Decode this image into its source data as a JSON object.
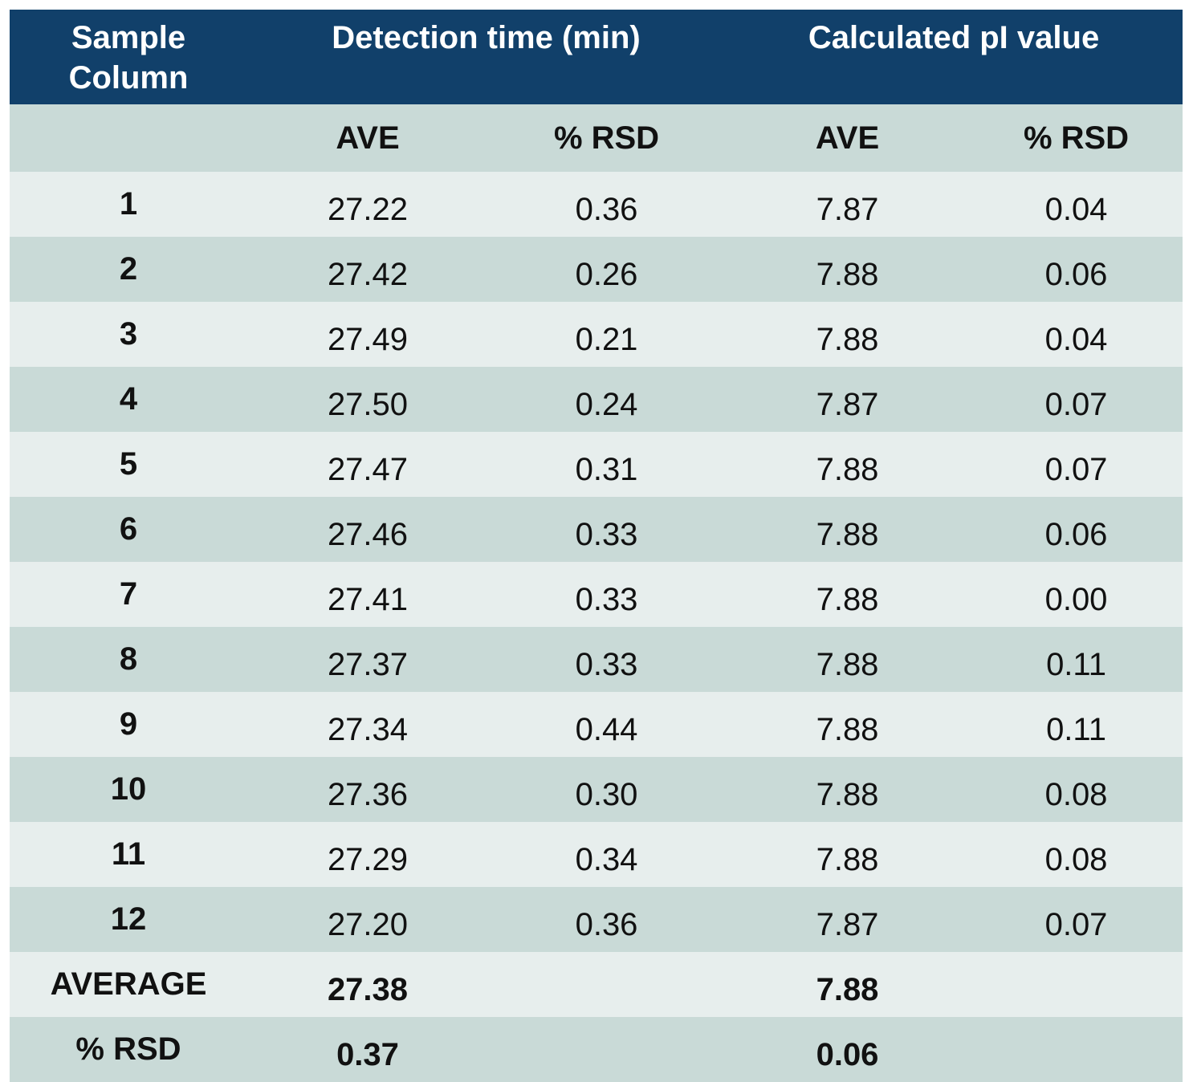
{
  "header": {
    "sample_column": [
      "Sample",
      "Column"
    ],
    "detection_time": "Detection time (min)",
    "calculated_pi": "Calculated pI value"
  },
  "subheader": {
    "blank": "",
    "dt_ave": "AVE",
    "dt_rsd": "% RSD",
    "pi_ave": "AVE",
    "pi_rsd": "% RSD"
  },
  "rows": [
    {
      "label": "1",
      "dt_ave": "27.22",
      "dt_rsd": "0.36",
      "pi_ave": "7.87",
      "pi_rsd": "0.04"
    },
    {
      "label": "2",
      "dt_ave": "27.42",
      "dt_rsd": "0.26",
      "pi_ave": "7.88",
      "pi_rsd": "0.06"
    },
    {
      "label": "3",
      "dt_ave": "27.49",
      "dt_rsd": "0.21",
      "pi_ave": "7.88",
      "pi_rsd": "0.04"
    },
    {
      "label": "4",
      "dt_ave": "27.50",
      "dt_rsd": "0.24",
      "pi_ave": "7.87",
      "pi_rsd": "0.07"
    },
    {
      "label": "5",
      "dt_ave": "27.47",
      "dt_rsd": "0.31",
      "pi_ave": "7.88",
      "pi_rsd": "0.07"
    },
    {
      "label": "6",
      "dt_ave": "27.46",
      "dt_rsd": "0.33",
      "pi_ave": "7.88",
      "pi_rsd": "0.06"
    },
    {
      "label": "7",
      "dt_ave": "27.41",
      "dt_rsd": "0.33",
      "pi_ave": "7.88",
      "pi_rsd": "0.00"
    },
    {
      "label": "8",
      "dt_ave": "27.37",
      "dt_rsd": "0.33",
      "pi_ave": "7.88",
      "pi_rsd": "0.11"
    },
    {
      "label": "9",
      "dt_ave": "27.34",
      "dt_rsd": "0.44",
      "pi_ave": "7.88",
      "pi_rsd": "0.11"
    },
    {
      "label": "10",
      "dt_ave": "27.36",
      "dt_rsd": "0.30",
      "pi_ave": "7.88",
      "pi_rsd": "0.08"
    },
    {
      "label": "11",
      "dt_ave": "27.29",
      "dt_rsd": "0.34",
      "pi_ave": "7.88",
      "pi_rsd": "0.08"
    },
    {
      "label": "12",
      "dt_ave": "27.20",
      "dt_rsd": "0.36",
      "pi_ave": "7.87",
      "pi_rsd": "0.07"
    }
  ],
  "summary": [
    {
      "label": "AVERAGE",
      "dt_ave": "27.38",
      "dt_rsd": "",
      "pi_ave": "7.88",
      "pi_rsd": ""
    },
    {
      "label": "% RSD",
      "dt_ave": "0.37",
      "dt_rsd": "",
      "pi_ave": "0.06",
      "pi_rsd": ""
    }
  ],
  "colors": {
    "header_bg": "#11406a",
    "header_text": "#ffffff",
    "row_light": "#e7eeed",
    "row_dark": "#c9dad7"
  }
}
